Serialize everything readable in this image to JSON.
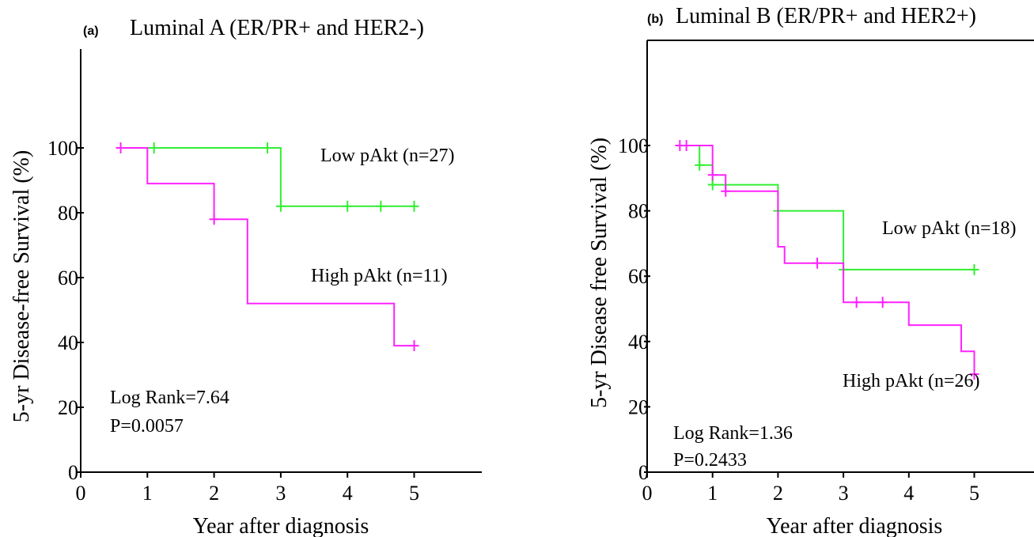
{
  "colors": {
    "low": "#33ee33",
    "high": "#ff22ff",
    "axis": "#000000"
  },
  "chart_data": [
    {
      "type": "line",
      "step": true,
      "panel_label": "(a)",
      "title": "Luminal A (ER/PR+ and HER2-)",
      "xlabel": "Year after diagnosis",
      "ylabel": "5-yr Disease-free Survival (%)",
      "xlim": [
        0,
        6
      ],
      "ylim": [
        0,
        120
      ],
      "xticks": [
        0,
        1,
        2,
        3,
        4,
        5
      ],
      "yticks": [
        0,
        20,
        40,
        60,
        80,
        100
      ],
      "ytick_labels": [
        "0",
        "20",
        "40",
        "60",
        "80",
        "100"
      ],
      "stats": {
        "log_rank": "Log Rank=7.64",
        "p_value": "P=0.0057"
      },
      "series": [
        {
          "name": "Low pAkt (n=27)",
          "color_key": "low",
          "steps": [
            [
              0.6,
              100
            ],
            [
              3.0,
              100
            ],
            [
              3.0,
              82
            ],
            [
              5.0,
              82
            ]
          ],
          "censored": [
            [
              1.1,
              100
            ],
            [
              2.8,
              100
            ],
            [
              3.0,
              82
            ],
            [
              4.0,
              82
            ],
            [
              4.5,
              82
            ],
            [
              5.0,
              82
            ]
          ]
        },
        {
          "name": "High pAkt (n=11)",
          "color_key": "high",
          "steps": [
            [
              0.6,
              100
            ],
            [
              1.0,
              100
            ],
            [
              1.0,
              89
            ],
            [
              2.0,
              89
            ],
            [
              2.0,
              78
            ],
            [
              2.5,
              78
            ],
            [
              2.5,
              52
            ],
            [
              4.7,
              52
            ],
            [
              4.7,
              39
            ],
            [
              5.0,
              39
            ]
          ],
          "censored": [
            [
              0.6,
              100
            ],
            [
              2.0,
              78
            ],
            [
              5.0,
              39
            ]
          ]
        }
      ]
    },
    {
      "type": "line",
      "step": true,
      "panel_label": "(b)",
      "title": "Luminal B (ER/PR+ and HER2+)",
      "xlabel": "Year after diagnosis",
      "ylabel": "5-yr Disease free Survival (%)",
      "xlim": [
        0,
        6
      ],
      "ylim": [
        0,
        120
      ],
      "xticks": [
        0,
        1,
        2,
        3,
        4,
        5
      ],
      "yticks": [
        0,
        20,
        40,
        60,
        80,
        100
      ],
      "ytick_labels": [
        "0",
        "20",
        "40",
        "60",
        "80",
        "100"
      ],
      "stats": {
        "log_rank": "Log Rank=1.36",
        "p_value": "P=0.2433"
      },
      "series": [
        {
          "name": "Low pAkt (n=18)",
          "color_key": "low",
          "steps": [
            [
              0.5,
              100
            ],
            [
              0.8,
              100
            ],
            [
              0.8,
              94
            ],
            [
              1.0,
              94
            ],
            [
              1.0,
              88
            ],
            [
              2.0,
              88
            ],
            [
              2.0,
              80
            ],
            [
              3.0,
              80
            ],
            [
              3.0,
              62
            ],
            [
              5.0,
              62
            ]
          ],
          "censored": [
            [
              0.8,
              94
            ],
            [
              1.0,
              88
            ],
            [
              2.0,
              80
            ],
            [
              3.0,
              62
            ],
            [
              5.0,
              62
            ]
          ]
        },
        {
          "name": "High pAkt (n=26)",
          "color_key": "high",
          "steps": [
            [
              0.5,
              100
            ],
            [
              1.0,
              100
            ],
            [
              1.0,
              91
            ],
            [
              1.2,
              91
            ],
            [
              1.2,
              86
            ],
            [
              2.0,
              86
            ],
            [
              2.0,
              69
            ],
            [
              2.1,
              69
            ],
            [
              2.1,
              64
            ],
            [
              3.0,
              64
            ],
            [
              3.0,
              52
            ],
            [
              4.0,
              52
            ],
            [
              4.0,
              45
            ],
            [
              4.8,
              45
            ],
            [
              4.8,
              37
            ],
            [
              5.0,
              37
            ],
            [
              5.0,
              30
            ]
          ],
          "censored": [
            [
              0.5,
              100
            ],
            [
              0.6,
              100
            ],
            [
              1.0,
              91
            ],
            [
              1.2,
              86
            ],
            [
              2.6,
              64
            ],
            [
              3.2,
              52
            ],
            [
              3.6,
              52
            ],
            [
              5.0,
              30
            ]
          ]
        }
      ]
    }
  ]
}
